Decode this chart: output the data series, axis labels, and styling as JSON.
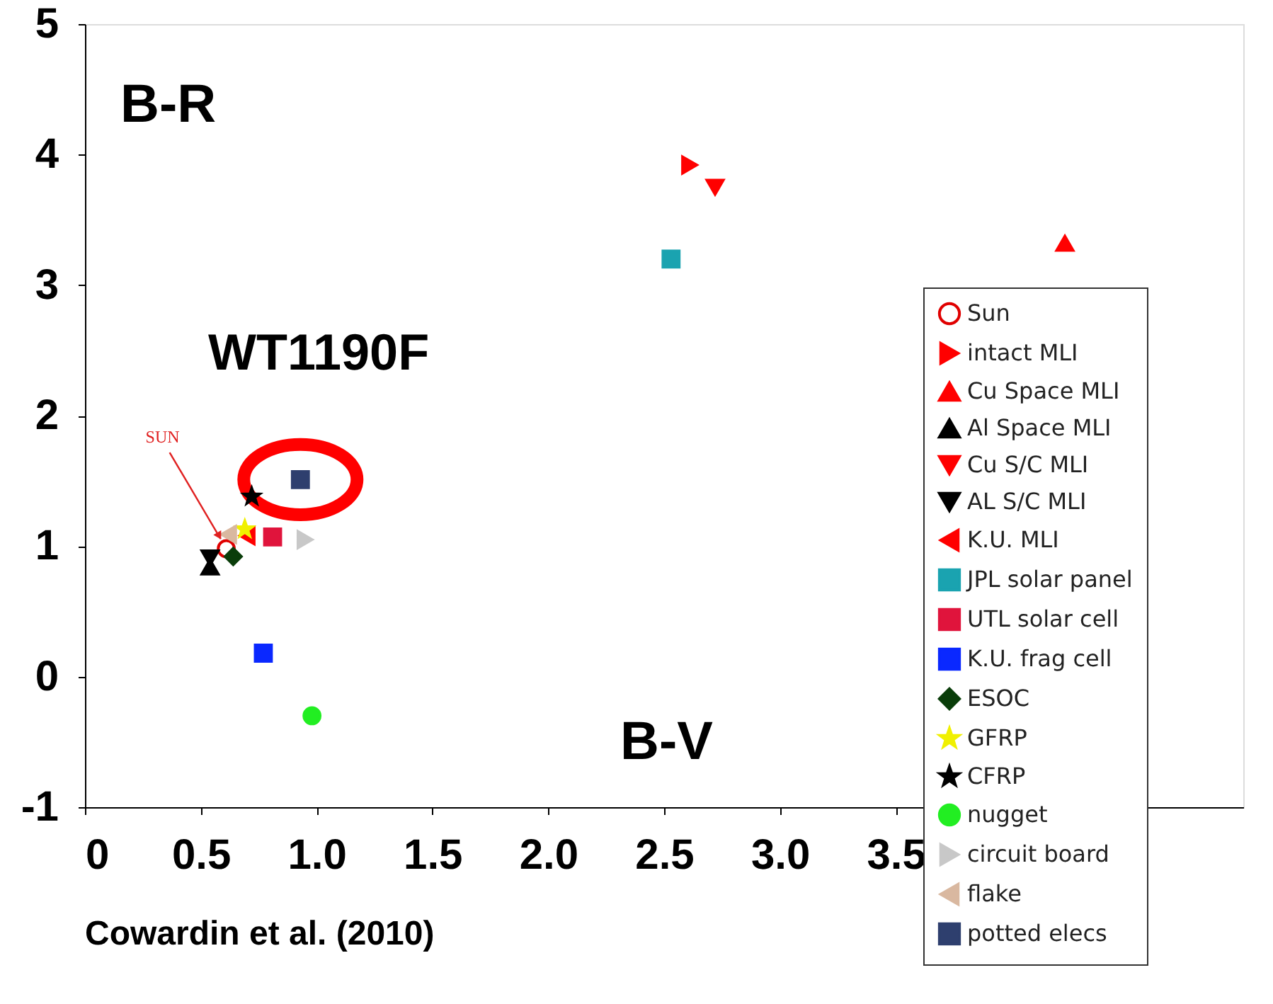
{
  "chart_data": {
    "type": "scatter",
    "xlabel": "B-V",
    "ylabel": "B-R",
    "annotations": [
      "WT1190F",
      {
        "text": "SUN",
        "x": 0.61,
        "y": 0.98
      },
      "Cowardin et al. (2010)"
    ],
    "xlim": [
      0,
      5
    ],
    "ylim": [
      -1,
      5
    ],
    "xticks": [
      0,
      0.5,
      {
        "value": 1,
        "label": "1.0"
      },
      1.5,
      {
        "value": 2,
        "label": "2.0"
      },
      2.5,
      {
        "value": 3,
        "label": "3.0"
      },
      3.5,
      {
        "value": 4,
        "label": null
      },
      {
        "value": 4.5,
        "label": null
      }
    ],
    "yticks": [
      -1,
      0,
      1,
      2,
      3,
      4,
      5
    ],
    "grid": false,
    "legend": "bottom right",
    "series": [
      {
        "name": "Sun",
        "color": "#e00000",
        "marker": "circle_open",
        "x": [
          0.61
        ],
        "values": [
          0.98
        ]
      },
      {
        "name": "intact MLI",
        "color": "#ff0000",
        "marker": "triangle-right",
        "x": [
          2.61
        ],
        "values": [
          3.92
        ]
      },
      {
        "name": "Cu Space MLI",
        "color": "#ff0000",
        "marker": "triangle-up",
        "x": [
          4.23
        ],
        "values": [
          3.32
        ]
      },
      {
        "name": "Al Space MLI",
        "color": "#000000",
        "marker": "triangle-up",
        "x": [
          0.54
        ],
        "values": [
          0.84
        ]
      },
      {
        "name": "Cu S/C MLI",
        "color": "#ff0000",
        "marker": "triangle-down",
        "x": [
          2.72
        ],
        "values": [
          3.75
        ]
      },
      {
        "name": "AL S/C MLI",
        "color": "#000000",
        "marker": "triangle-down",
        "x": [
          0.54
        ],
        "values": [
          0.91
        ]
      },
      {
        "name": "K.U. MLI",
        "color": "#ff0000",
        "marker": "triangle-left",
        "x": [
          0.7
        ],
        "values": [
          1.08
        ]
      },
      {
        "name": "JPL solar panel",
        "color": "#1aa3b0",
        "marker": "square",
        "x": [
          2.53
        ],
        "values": [
          3.2
        ]
      },
      {
        "name": "UTL solar cell",
        "color": "#e0143c",
        "marker": "square",
        "x": [
          0.81
        ],
        "values": [
          1.07
        ]
      },
      {
        "name": "K.U. frag cell",
        "color": "#0a28ff",
        "marker": "square",
        "x": [
          0.77
        ],
        "values": [
          0.18
        ]
      },
      {
        "name": "ESOC",
        "color": "#0a3d0a",
        "marker": "diamond",
        "x": [
          0.64
        ],
        "values": [
          0.92
        ]
      },
      {
        "name": "GFRP",
        "color": "#f0f000",
        "marker": "star",
        "x": [
          0.69
        ],
        "values": [
          1.13
        ]
      },
      {
        "name": "CFRP",
        "color": "#000000",
        "marker": "star",
        "x": [
          0.72
        ],
        "values": [
          1.38
        ]
      },
      {
        "name": "nugget",
        "color": "#22ee22",
        "marker": "circle",
        "x": [
          0.98
        ],
        "values": [
          -0.3
        ]
      },
      {
        "name": "circuit board",
        "color": "#c8c8c8",
        "marker": "triangle-right",
        "x": [
          0.95
        ],
        "values": [
          1.05
        ]
      },
      {
        "name": "flake",
        "color": "#d9b8a0",
        "marker": "triangle-left",
        "x": [
          0.62
        ],
        "values": [
          1.09
        ]
      },
      {
        "name": "potted elecs",
        "color": "#2e3f6e",
        "marker": "square",
        "x": [
          0.93
        ],
        "values": [
          1.51
        ]
      }
    ]
  }
}
